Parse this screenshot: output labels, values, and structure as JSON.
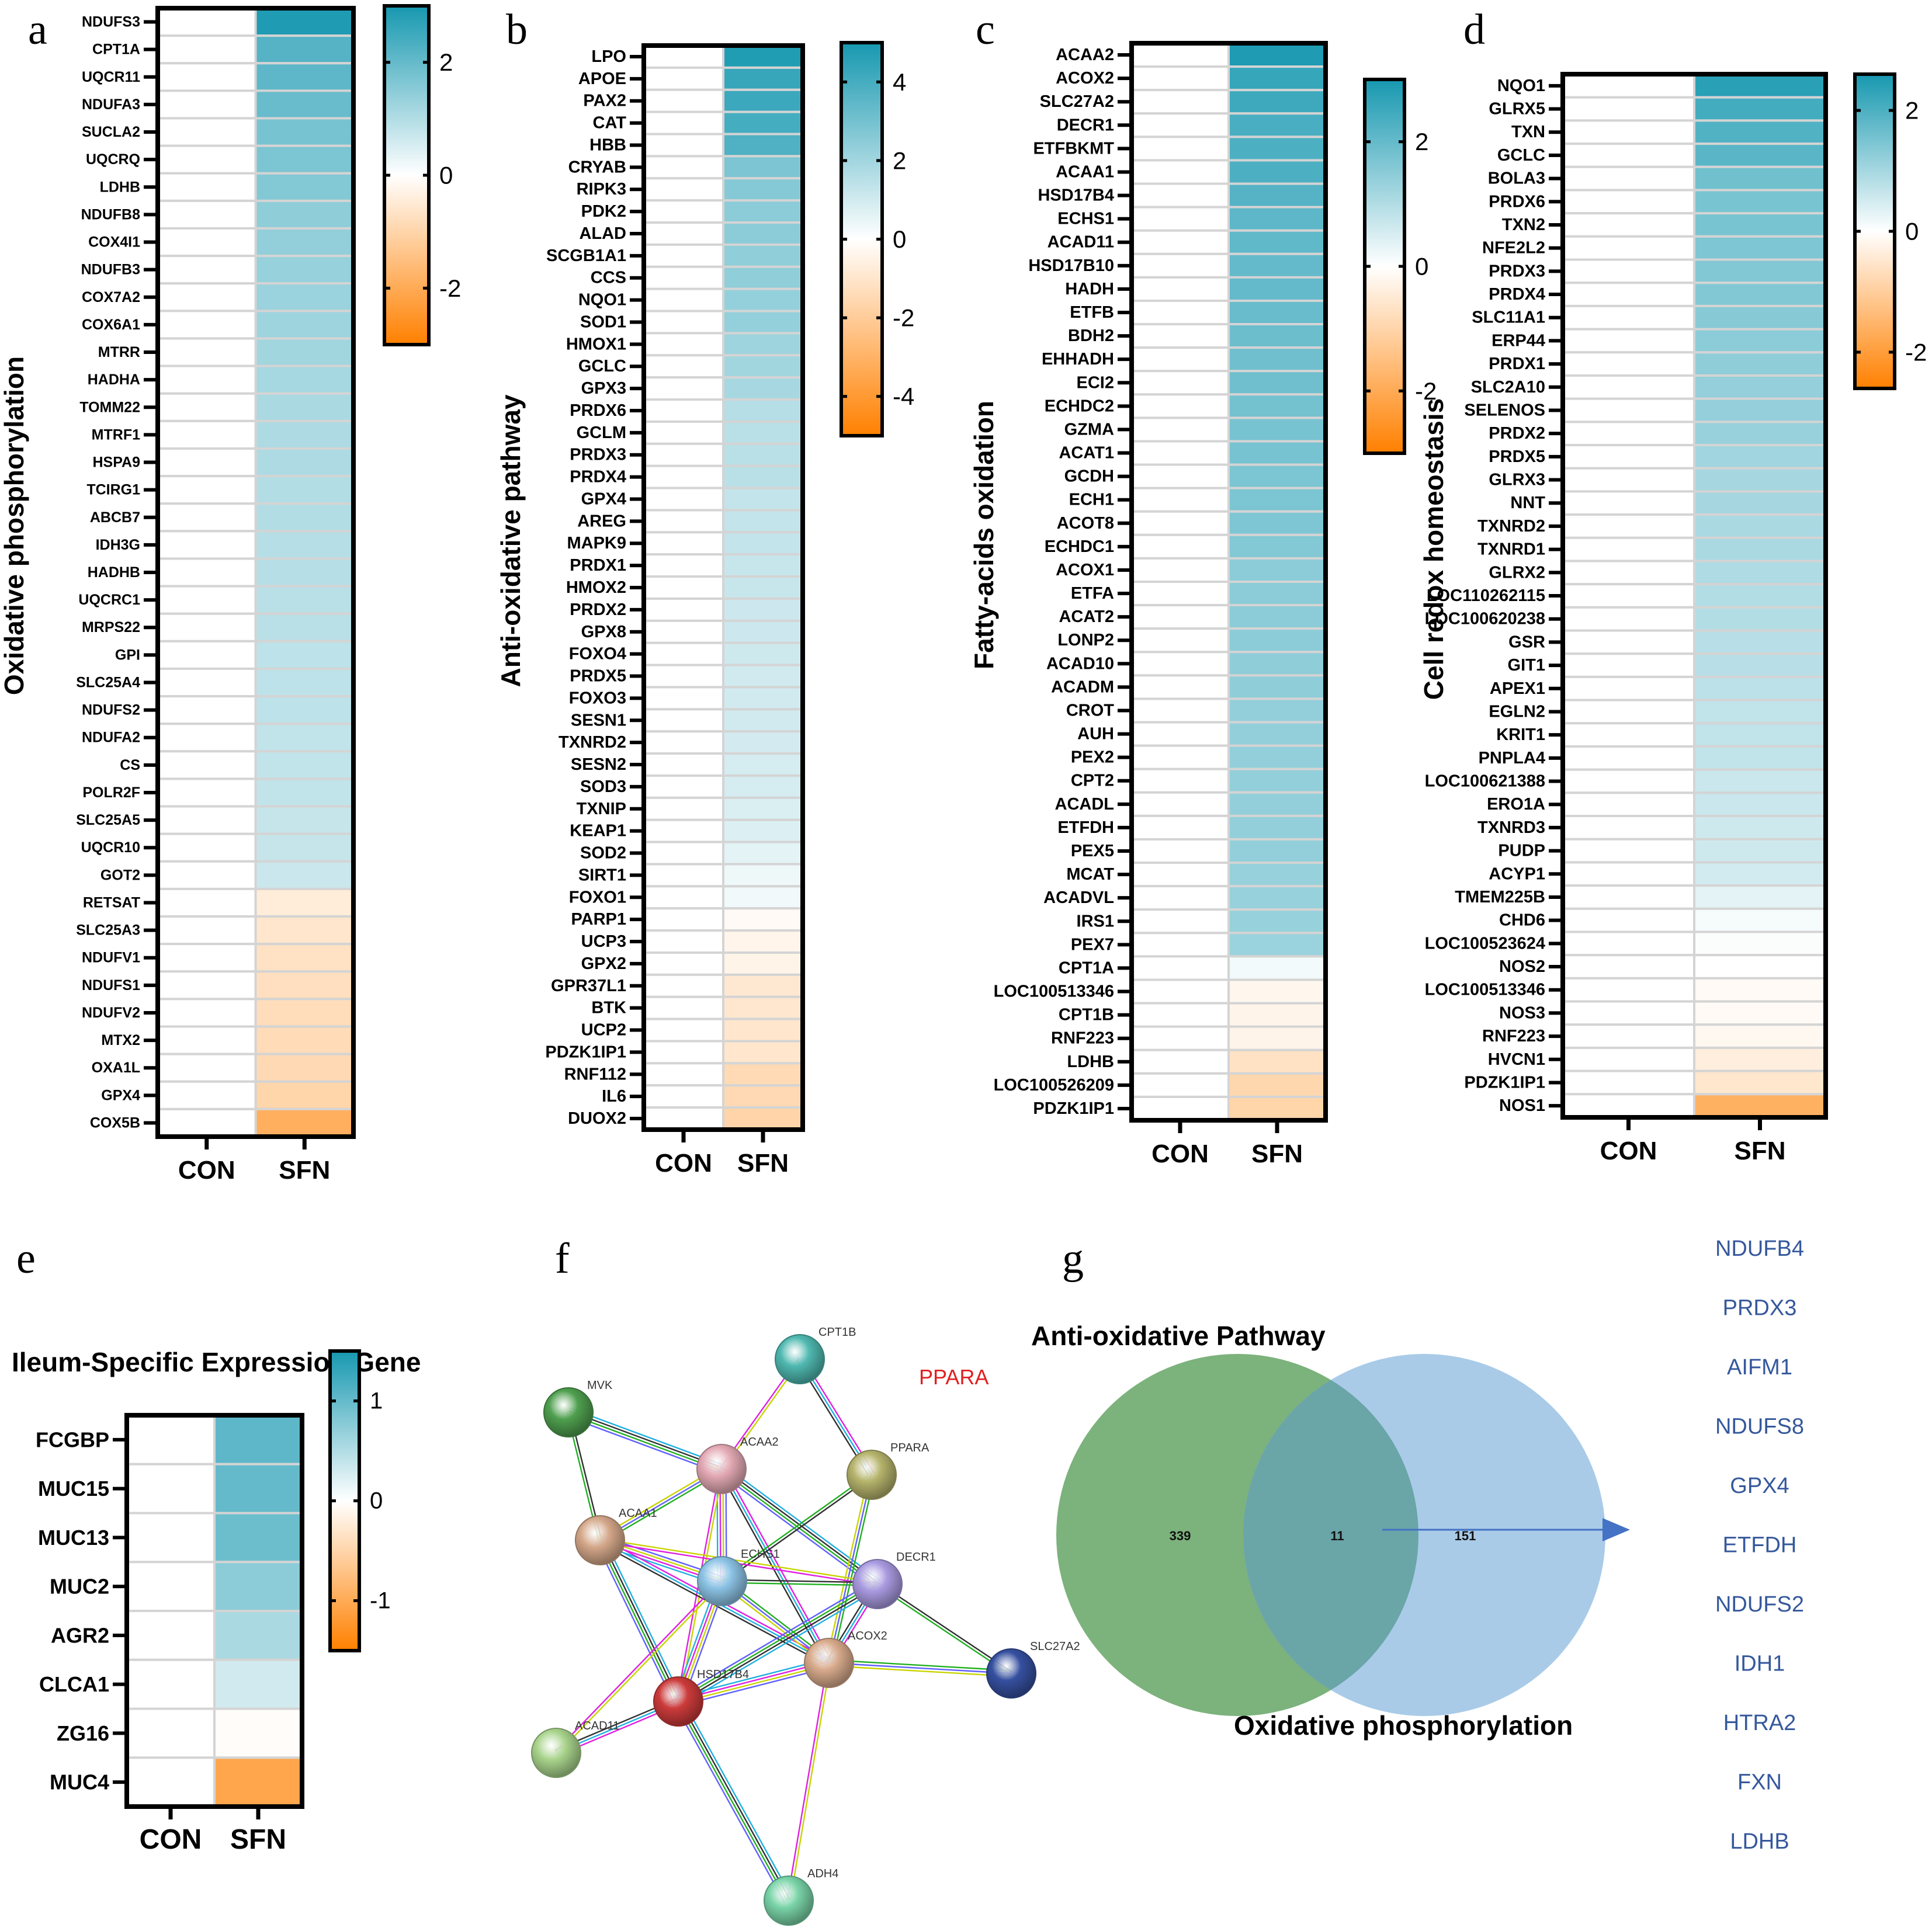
{
  "figure": {
    "panel_letters": [
      "a",
      "b",
      "c",
      "d",
      "e",
      "f",
      "g"
    ],
    "colors": {
      "high": "#1798b0",
      "mid": "#ffffff",
      "low": "#ff8000",
      "grid": "#d4d4d4",
      "venn_left": "#7cb27c",
      "venn_right": "#a9cbe8",
      "venn_overlap": "#6aa5a8",
      "arrow": "#4472c4",
      "shared_gene_text": "#35589c",
      "highlight_text": "#e02020"
    }
  },
  "chart_data": [
    {
      "id": "a",
      "type": "heatmap",
      "title": "",
      "ylabel": "Oxidative phosphorylation",
      "columns": [
        "CON",
        "SFN"
      ],
      "colorbar": {
        "range": [
          -3,
          3
        ],
        "ticks": [
          2,
          0,
          -2
        ],
        "colors": [
          "#ff8000",
          "#ffffff",
          "#1798b0"
        ]
      },
      "rows": [
        "NDUFS3",
        "CPT1A",
        "UQCR11",
        "NDUFA3",
        "SUCLA2",
        "UQCRQ",
        "LDHB",
        "NDUFB8",
        "COX4I1",
        "NDUFB3",
        "COX7A2",
        "COX6A1",
        "MTRR",
        "HADHA",
        "TOMM22",
        "MTRF1",
        "HSPA9",
        "TCIRG1",
        "ABCB7",
        "IDH3G",
        "HADHB",
        "UQCRC1",
        "MRPS22",
        "GPI",
        "SLC25A4",
        "NDUFS2",
        "NDUFA2",
        "CS",
        "POLR2F",
        "SLC25A5",
        "UQCR10",
        "GOT2",
        "RETSAT",
        "SLC25A3",
        "NDUFV1",
        "NDUFS1",
        "NDUFV2",
        "MTX2",
        "OXA1L",
        "GPX4",
        "COX5B"
      ],
      "values_CON": [
        0,
        0,
        0,
        0,
        0,
        0,
        0,
        0,
        0,
        0,
        0,
        0,
        0,
        0,
        0,
        0,
        0,
        0,
        0,
        0,
        0,
        0,
        0,
        0,
        0,
        0,
        0,
        0,
        0,
        0,
        0,
        0,
        0,
        0,
        0,
        0,
        0,
        0,
        0,
        0,
        0
      ],
      "values_SFN": [
        2.9,
        2.2,
        2.1,
        1.95,
        1.75,
        1.7,
        1.6,
        1.45,
        1.4,
        1.35,
        1.3,
        1.25,
        1.2,
        1.15,
        1.1,
        1.05,
        1.05,
        1.0,
        1.0,
        0.95,
        0.95,
        0.9,
        0.9,
        0.85,
        0.85,
        0.85,
        0.8,
        0.8,
        0.8,
        0.75,
        0.75,
        0.7,
        -0.45,
        -0.6,
        -0.7,
        -0.75,
        -0.8,
        -0.85,
        -0.9,
        -1.0,
        -1.9
      ]
    },
    {
      "id": "b",
      "type": "heatmap",
      "title": "",
      "ylabel": "Anti-oxidative pathway",
      "columns": [
        "CON",
        "SFN"
      ],
      "colorbar": {
        "range": [
          -5,
          5
        ],
        "ticks": [
          4,
          2,
          0,
          -2,
          -4
        ],
        "colors": [
          "#ff8000",
          "#ffffff",
          "#1798b0"
        ]
      },
      "rows": [
        "LPO",
        "APOE",
        "PAX2",
        "CAT",
        "HBB",
        "CRYAB",
        "RIPK3",
        "PDK2",
        "ALAD",
        "SCGB1A1",
        "CCS",
        "NQO1",
        "SOD1",
        "HMOX1",
        "GCLC",
        "GPX3",
        "PRDX6",
        "GCLM",
        "PRDX3",
        "PRDX4",
        "GPX4",
        "AREG",
        "MAPK9",
        "PRDX1",
        "HMOX2",
        "PRDX2",
        "GPX8",
        "FOXO4",
        "PRDX5",
        "FOXO3",
        "SESN1",
        "TXNRD2",
        "SESN2",
        "SOD3",
        "TXNIP",
        "KEAP1",
        "SOD2",
        "SIRT1",
        "FOXO1",
        "PARP1",
        "UCP3",
        "GPX2",
        "GPR37L1",
        "BTK",
        "UCP2",
        "PDZK1IP1",
        "RNF112",
        "IL6",
        "DUOX2"
      ],
      "values_CON": [
        0,
        0,
        0,
        0,
        0,
        0,
        0,
        0,
        0,
        0,
        0,
        0,
        0,
        0,
        0,
        0,
        0,
        0,
        0,
        0,
        0,
        0,
        0,
        0,
        0,
        0,
        0,
        0,
        0,
        0,
        0,
        0,
        0,
        0,
        0,
        0,
        0,
        0,
        0,
        0,
        0,
        0,
        0,
        0,
        0,
        0,
        0,
        0,
        0
      ],
      "values_SFN": [
        4.8,
        4.3,
        4.2,
        4.0,
        3.8,
        2.8,
        2.6,
        2.5,
        2.5,
        2.4,
        2.4,
        2.3,
        2.3,
        2.1,
        2.0,
        1.9,
        1.6,
        1.5,
        1.5,
        1.5,
        1.3,
        1.3,
        1.3,
        1.2,
        1.2,
        1.1,
        1.1,
        1.05,
        1.0,
        1.0,
        1.0,
        0.95,
        0.9,
        0.9,
        0.8,
        0.75,
        0.6,
        0.35,
        0.3,
        -0.2,
        -0.4,
        -0.45,
        -0.9,
        -0.95,
        -1.0,
        -1.0,
        -1.45,
        -1.5,
        -1.7
      ]
    },
    {
      "id": "c",
      "type": "heatmap",
      "title": "",
      "ylabel": "Fatty-acids oxidation",
      "columns": [
        "CON",
        "SFN"
      ],
      "colorbar": {
        "range": [
          -3,
          3
        ],
        "ticks": [
          2,
          0,
          -2
        ],
        "colors": [
          "#ff8000",
          "#ffffff",
          "#1798b0"
        ]
      },
      "rows": [
        "ACAA2",
        "ACOX2",
        "SLC27A2",
        "DECR1",
        "ETFBKMT",
        "ACAA1",
        "HSD17B4",
        "ECHS1",
        "ACAD11",
        "HSD17B10",
        "HADH",
        "ETFB",
        "BDH2",
        "EHHADH",
        "ECI2",
        "ECHDC2",
        "GZMA",
        "ACAT1",
        "GCDH",
        "ECH1",
        "ACOT8",
        "ECHDC1",
        "ACOX1",
        "ETFA",
        "ACAT2",
        "LONP2",
        "ACAD10",
        "ACADM",
        "CROT",
        "AUH",
        "PEX2",
        "CPT2",
        "ACADL",
        "ETFDH",
        "PEX5",
        "MCAT",
        "ACADVL",
        "IRS1",
        "PEX7",
        "CPT1A",
        "LOC100513346",
        "CPT1B",
        "RNF223",
        "LDHB",
        "LOC100526209",
        "PDZK1IP1"
      ],
      "values_CON": [
        0,
        0,
        0,
        0,
        0,
        0,
        0,
        0,
        0,
        0,
        0,
        0,
        0,
        0,
        0,
        0,
        0,
        0,
        0,
        0,
        0,
        0,
        0,
        0,
        0,
        0,
        0,
        0,
        0,
        0,
        0,
        0,
        0,
        0,
        0,
        0,
        0,
        0,
        0,
        0,
        0,
        0,
        0,
        0,
        0,
        0
      ],
      "values_SFN": [
        2.9,
        2.6,
        2.5,
        2.35,
        2.3,
        2.3,
        2.2,
        2.1,
        2.05,
        2.0,
        2.0,
        1.95,
        1.9,
        1.85,
        1.85,
        1.8,
        1.75,
        1.75,
        1.7,
        1.7,
        1.65,
        1.6,
        1.5,
        1.5,
        1.5,
        1.5,
        1.45,
        1.45,
        1.4,
        1.4,
        1.4,
        1.4,
        1.4,
        1.4,
        1.4,
        1.35,
        1.35,
        1.35,
        1.3,
        0.15,
        -0.2,
        -0.25,
        -0.25,
        -0.7,
        -0.95,
        -1.0
      ]
    },
    {
      "id": "d",
      "type": "heatmap",
      "title": "",
      "ylabel": "Cell redox homeostasis",
      "columns": [
        "CON",
        "SFN"
      ],
      "colorbar": {
        "range": [
          -2.6,
          2.6
        ],
        "ticks": [
          2,
          0,
          -2
        ],
        "colors": [
          "#ff8000",
          "#ffffff",
          "#1798b0"
        ]
      },
      "rows": [
        "NQO1",
        "GLRX5",
        "TXN",
        "GCLC",
        "BOLA3",
        "PRDX6",
        "TXN2",
        "NFE2L2",
        "PRDX3",
        "PRDX4",
        "SLC11A1",
        "ERP44",
        "PRDX1",
        "SLC2A10",
        "SELENOS",
        "PRDX2",
        "PRDX5",
        "GLRX3",
        "NNT",
        "TXNRD2",
        "TXNRD1",
        "GLRX2",
        "LOC110262115",
        "LOC100620238",
        "GSR",
        "GIT1",
        "APEX1",
        "EGLN2",
        "KRIT1",
        "PNPLA4",
        "LOC100621388",
        "ERO1A",
        "TXNRD3",
        "PUDP",
        "ACYP1",
        "TMEM225B",
        "CHD6",
        "LOC100523624",
        "NOS2",
        "LOC100513346",
        "NOS3",
        "RNF223",
        "HVCN1",
        "PDZK1IP1",
        "NOS1"
      ],
      "values_CON": [
        0,
        0,
        0,
        0,
        0,
        0,
        0,
        0,
        0,
        0,
        0,
        0,
        0,
        0,
        0,
        0,
        0,
        0,
        0,
        0,
        0,
        0,
        0,
        0,
        0,
        0,
        0,
        0,
        0,
        0,
        0,
        0,
        0,
        0,
        0,
        0,
        0,
        0,
        0,
        0,
        0,
        0,
        0,
        0,
        0
      ],
      "values_SFN": [
        2.4,
        2.1,
        1.95,
        1.85,
        1.6,
        1.5,
        1.5,
        1.45,
        1.4,
        1.4,
        1.35,
        1.3,
        1.25,
        1.2,
        1.2,
        1.15,
        1.05,
        1.0,
        1.0,
        0.95,
        0.95,
        0.9,
        0.85,
        0.85,
        0.8,
        0.8,
        0.75,
        0.7,
        0.7,
        0.7,
        0.6,
        0.6,
        0.55,
        0.55,
        0.5,
        0.3,
        0.1,
        0.05,
        0.0,
        -0.1,
        -0.1,
        -0.15,
        -0.35,
        -0.5,
        -1.6
      ]
    },
    {
      "id": "e",
      "type": "heatmap",
      "title": "Ileum-Specific Expression Gene",
      "ylabel": "",
      "columns": [
        "CON",
        "SFN"
      ],
      "colorbar": {
        "range": [
          -1.5,
          1.5
        ],
        "ticks": [
          1,
          0,
          -1
        ],
        "colors": [
          "#ff8000",
          "#ffffff",
          "#1798b0"
        ]
      },
      "rows": [
        "FCGBP",
        "MUC15",
        "MUC13",
        "MUC2",
        "AGR2",
        "CLCA1",
        "ZG16",
        "MUC4"
      ],
      "values_CON": [
        0,
        0,
        0,
        0,
        0,
        0,
        0,
        0
      ],
      "values_SFN": [
        1.05,
        1.0,
        0.95,
        0.75,
        0.55,
        0.3,
        -0.03,
        -1.05
      ]
    },
    {
      "id": "g",
      "type": "venn",
      "title": "Anti-oxidative Pathway",
      "sets": [
        {
          "name": "Anti-oxidative Pathway",
          "only": 339
        },
        {
          "name": "Oxidative phosphorylation",
          "only": 151
        }
      ],
      "intersection": 11,
      "shared_genes": [
        "NDUFB4",
        "PRDX3",
        "AIFM1",
        "NDUFS8",
        "GPX4",
        "ETFDH",
        "NDUFS2",
        "IDH1",
        "HTRA2",
        "FXN",
        "LDHB"
      ]
    }
  ],
  "network": {
    "annotation": "PPARA",
    "nodes": [
      {
        "id": "CPT1B",
        "color": "#4fb8b0"
      },
      {
        "id": "MVK",
        "color": "#4f9f4f"
      },
      {
        "id": "ACAA2",
        "color": "#e3a9b4"
      },
      {
        "id": "PPARA",
        "color": "#b5b36b"
      },
      {
        "id": "ACAA1",
        "color": "#d4a789"
      },
      {
        "id": "ECHS1",
        "color": "#8cc3e5"
      },
      {
        "id": "DECR1",
        "color": "#a99ae0"
      },
      {
        "id": "SLC27A2",
        "color": "#3650a0"
      },
      {
        "id": "ACOX2",
        "color": "#d8aa8c"
      },
      {
        "id": "HSD17B4",
        "color": "#cc3b3b"
      },
      {
        "id": "ACAD11",
        "color": "#a9d48c"
      },
      {
        "id": "ADH4",
        "color": "#7ad4a8"
      }
    ],
    "edges": [
      [
        "CPT1B",
        "ACAA2"
      ],
      [
        "CPT1B",
        "PPARA"
      ],
      [
        "MVK",
        "ACAA2"
      ],
      [
        "MVK",
        "ACAA1"
      ],
      [
        "ACAA2",
        "ACAA1"
      ],
      [
        "ACAA2",
        "ECHS1"
      ],
      [
        "ACAA2",
        "HSD17B4"
      ],
      [
        "ACAA2",
        "ACOX2"
      ],
      [
        "ACAA2",
        "DECR1"
      ],
      [
        "PPARA",
        "ECHS1"
      ],
      [
        "PPARA",
        "ACOX2"
      ],
      [
        "ACAA1",
        "ECHS1"
      ],
      [
        "ACAA1",
        "DECR1"
      ],
      [
        "ACAA1",
        "ACOX2"
      ],
      [
        "ACAA1",
        "HSD17B4"
      ],
      [
        "ECHS1",
        "DECR1"
      ],
      [
        "ECHS1",
        "ACOX2"
      ],
      [
        "ECHS1",
        "HSD17B4"
      ],
      [
        "ECHS1",
        "ACAD11"
      ],
      [
        "DECR1",
        "ACOX2"
      ],
      [
        "DECR1",
        "HSD17B4"
      ],
      [
        "DECR1",
        "SLC27A2"
      ],
      [
        "ACOX2",
        "SLC27A2"
      ],
      [
        "ACOX2",
        "HSD17B4"
      ],
      [
        "ACOX2",
        "ADH4"
      ],
      [
        "HSD17B4",
        "ACAD11"
      ],
      [
        "HSD17B4",
        "ADH4"
      ]
    ],
    "edge_colors": [
      "#c8d400",
      "#e020e0",
      "#20b0e0",
      "#303030",
      "#20b020",
      "#6060ff"
    ]
  }
}
